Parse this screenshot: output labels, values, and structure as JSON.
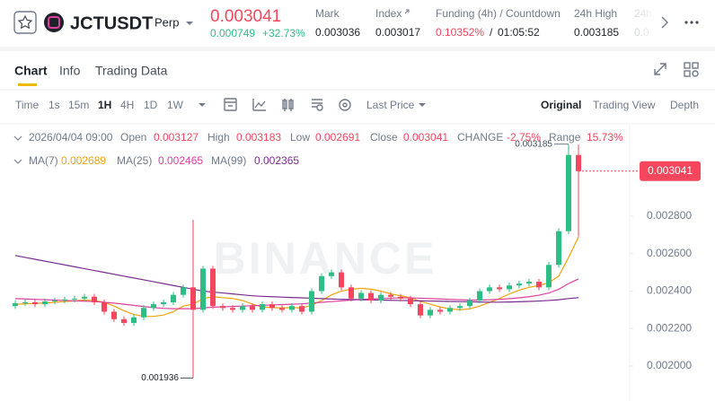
{
  "header": {
    "symbol": "JCTUSDT",
    "contract": "Perp",
    "last_price": "0.003041",
    "change_abs": "0.000749",
    "change_pct": "+32.73%",
    "stats": [
      {
        "label": "Mark",
        "value": "0.003036"
      },
      {
        "label": "Index",
        "value": "0.003017"
      },
      {
        "label": "Funding (4h) / Countdown",
        "value": "0.10352%",
        "separator": "/",
        "extra": "01:05:52"
      },
      {
        "label": "24h High",
        "value": "0.003185"
      },
      {
        "label": "24h",
        "value": "0.0"
      }
    ]
  },
  "tabs": [
    "Chart",
    "Info",
    "Trading Data"
  ],
  "toolbar": {
    "intervals": [
      "Time",
      "1s",
      "15m",
      "1H",
      "4H",
      "1D",
      "1W"
    ],
    "price_type": "Last Price",
    "views": [
      "Original",
      "Trading View",
      "Depth"
    ]
  },
  "legend": {
    "time": "2026/04/04 09:00",
    "fields": [
      {
        "label": "Open",
        "value": "0.003127"
      },
      {
        "label": "High",
        "value": "0.003183"
      },
      {
        "label": "Low",
        "value": "0.002691"
      },
      {
        "label": "Close",
        "value": "0.003041"
      },
      {
        "label": "CHANGE",
        "value": "-2.75%"
      },
      {
        "label": "Range",
        "value": "15.73%"
      }
    ],
    "ma": [
      {
        "label": "MA(7)",
        "value": "0.002689"
      },
      {
        "label": "MA(25)",
        "value": "0.002465"
      },
      {
        "label": "MA(99)",
        "value": "0.002365"
      }
    ]
  },
  "chart_data": {
    "type": "candlestick",
    "watermark": "BINANCE",
    "up_color": "#2ebd85",
    "down_color": "#f6465d",
    "open": [
      0.00232,
      0.002335,
      0.00234,
      0.00233,
      0.002345,
      0.00235,
      0.002355,
      0.00236,
      0.00237,
      0.00234,
      0.00229,
      0.00225,
      0.00223,
      0.00226,
      0.00231,
      0.00233,
      0.00234,
      0.00238,
      0.00242,
      0.0023,
      0.00252,
      0.00232,
      0.00231,
      0.0023,
      0.00232,
      0.0023,
      0.00233,
      0.00231,
      0.0023,
      0.00232,
      0.00229,
      0.0024,
      0.00248,
      0.0025,
      0.00242,
      0.00236,
      0.00239,
      0.00235,
      0.00238,
      0.00237,
      0.00236,
      0.00233,
      0.00227,
      0.0023,
      0.00229,
      0.00231,
      0.00232,
      0.00235,
      0.0024,
      0.00242,
      0.00241,
      0.00243,
      0.00244,
      0.00245,
      0.00242,
      0.00254,
      0.00272,
      0.003127
    ],
    "high": [
      0.00235,
      0.002355,
      0.002355,
      0.00236,
      0.002365,
      0.00237,
      0.002375,
      0.002385,
      0.002385,
      0.002355,
      0.002305,
      0.002265,
      0.002275,
      0.002325,
      0.002345,
      0.002355,
      0.002395,
      0.002435,
      0.00278,
      0.002535,
      0.002535,
      0.002335,
      0.002325,
      0.002335,
      0.002335,
      0.002345,
      0.002345,
      0.002325,
      0.002335,
      0.002335,
      0.002415,
      0.002495,
      0.002515,
      0.002515,
      0.002435,
      0.002405,
      0.002405,
      0.002395,
      0.002395,
      0.002385,
      0.002375,
      0.002345,
      0.002315,
      0.002315,
      0.002325,
      0.002335,
      0.002365,
      0.002415,
      0.002435,
      0.002435,
      0.002445,
      0.002455,
      0.002465,
      0.002465,
      0.002555,
      0.002735,
      0.003185,
      0.003183
    ],
    "low": [
      0.002305,
      0.00232,
      0.002315,
      0.002315,
      0.00233,
      0.002335,
      0.00234,
      0.002345,
      0.002325,
      0.002275,
      0.002235,
      0.002215,
      0.002215,
      0.002245,
      0.002295,
      0.002315,
      0.002325,
      0.002365,
      0.001936,
      0.002285,
      0.002305,
      0.002295,
      0.002285,
      0.002285,
      0.002285,
      0.002285,
      0.002295,
      0.002285,
      0.002285,
      0.002275,
      0.002275,
      0.002385,
      0.002465,
      0.002405,
      0.002345,
      0.002345,
      0.002335,
      0.002335,
      0.002355,
      0.002345,
      0.002315,
      0.002255,
      0.002255,
      0.002275,
      0.002275,
      0.002295,
      0.002305,
      0.002335,
      0.002385,
      0.002395,
      0.002395,
      0.002415,
      0.002425,
      0.002405,
      0.002405,
      0.002525,
      0.002705,
      0.002691
    ],
    "close": [
      0.002335,
      0.00234,
      0.00233,
      0.002345,
      0.00235,
      0.002355,
      0.00236,
      0.00237,
      0.00234,
      0.00229,
      0.00225,
      0.00223,
      0.00226,
      0.00231,
      0.00233,
      0.00234,
      0.00238,
      0.00242,
      0.0023,
      0.00252,
      0.00232,
      0.00231,
      0.0023,
      0.00232,
      0.0023,
      0.00233,
      0.00231,
      0.0023,
      0.00232,
      0.00229,
      0.0024,
      0.00248,
      0.0025,
      0.00242,
      0.00236,
      0.00239,
      0.00235,
      0.00238,
      0.00237,
      0.00236,
      0.00233,
      0.00227,
      0.0023,
      0.00229,
      0.00231,
      0.00232,
      0.00235,
      0.0024,
      0.00242,
      0.00241,
      0.00243,
      0.00244,
      0.00245,
      0.00242,
      0.00254,
      0.00272,
      0.003127,
      0.003041
    ],
    "series": [
      {
        "name": "MA(7)",
        "color": "#f0a30a",
        "values": [
          0.00233,
          0.002332,
          0.002334,
          0.002337,
          0.00234,
          0.002344,
          0.002348,
          0.002352,
          0.00235,
          0.00234,
          0.00232,
          0.002295,
          0.002275,
          0.002265,
          0.002265,
          0.002272,
          0.00229,
          0.00232,
          0.00233,
          0.00236,
          0.00237,
          0.002365,
          0.00236,
          0.00235,
          0.00233,
          0.002315,
          0.002312,
          0.00231,
          0.002312,
          0.00231,
          0.002325,
          0.00235,
          0.00238,
          0.0024,
          0.00241,
          0.002415,
          0.00241,
          0.0024,
          0.002385,
          0.002375,
          0.002365,
          0.002345,
          0.00233,
          0.002315,
          0.002305,
          0.0023,
          0.002305,
          0.00232,
          0.00234,
          0.00236,
          0.002385,
          0.002405,
          0.00242,
          0.00243,
          0.002445,
          0.00248,
          0.00258,
          0.002689
        ]
      },
      {
        "name": "MA(25)",
        "color": "#e040a0",
        "values": [
          0.00236,
          0.002358,
          0.002356,
          0.002354,
          0.002352,
          0.00235,
          0.002348,
          0.002346,
          0.002344,
          0.00234,
          0.002336,
          0.00233,
          0.002324,
          0.002318,
          0.002312,
          0.002308,
          0.002306,
          0.002306,
          0.002306,
          0.00231,
          0.002314,
          0.002316,
          0.002318,
          0.00232,
          0.002322,
          0.002324,
          0.002326,
          0.002328,
          0.00233,
          0.002332,
          0.002336,
          0.00234,
          0.002344,
          0.002348,
          0.002352,
          0.002356,
          0.002358,
          0.00236,
          0.002362,
          0.002364,
          0.002364,
          0.002362,
          0.00236,
          0.002358,
          0.002356,
          0.002354,
          0.002352,
          0.002352,
          0.002354,
          0.002356,
          0.00236,
          0.002364,
          0.00237,
          0.002378,
          0.00239,
          0.00241,
          0.00244,
          0.002465
        ]
      },
      {
        "name": "MA(99)",
        "color": "#7b2d8e",
        "values": [
          0.00259,
          0.00258,
          0.00257,
          0.00256,
          0.00255,
          0.00254,
          0.00253,
          0.00252,
          0.00251,
          0.0025,
          0.00249,
          0.00248,
          0.00247,
          0.00246,
          0.00245,
          0.00244,
          0.00243,
          0.00242,
          0.00241,
          0.0024,
          0.002395,
          0.00239,
          0.002385,
          0.00238,
          0.002375,
          0.002372,
          0.00237,
          0.002368,
          0.002366,
          0.002364,
          0.002362,
          0.00236,
          0.002358,
          0.002356,
          0.002355,
          0.002354,
          0.002353,
          0.002352,
          0.002351,
          0.00235,
          0.002349,
          0.002348,
          0.002347,
          0.002346,
          0.002345,
          0.002344,
          0.002343,
          0.002342,
          0.002341,
          0.002341,
          0.002342,
          0.002343,
          0.002345,
          0.002347,
          0.00235,
          0.002354,
          0.00236,
          0.002365
        ]
      }
    ],
    "ylim": [
      0.001813,
      0.003284
    ],
    "yticks": [
      {
        "value": 0.0028,
        "label": "0.002800"
      },
      {
        "value": 0.0026,
        "label": "0.002600"
      },
      {
        "value": 0.0024,
        "label": "0.002400"
      },
      {
        "value": 0.0022,
        "label": "0.002200"
      },
      {
        "value": 0.002,
        "label": "0.002000"
      }
    ],
    "max_marker": "0.003185",
    "min_marker": "0.001936",
    "price_tag": "0.003041"
  }
}
